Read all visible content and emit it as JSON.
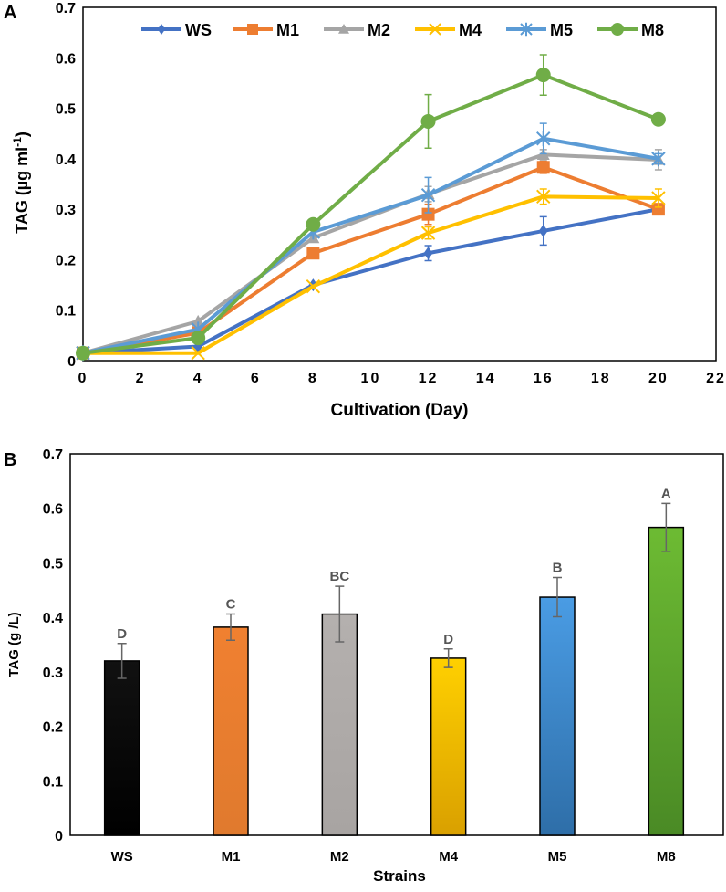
{
  "chart_data": [
    {
      "type": "line",
      "panel_label": "A",
      "title": "",
      "xlabel": "Cultivation (Day)",
      "ylabel": "TAG (µg ml",
      "ylabel_sup": "-1",
      "ylabel_close": ")",
      "xlim": [
        0,
        22
      ],
      "ylim": [
        0,
        0.7
      ],
      "x_ticks": [
        "0",
        "2",
        "4",
        "6",
        "8",
        "10",
        "12",
        "14",
        "16",
        "18",
        "20",
        "22"
      ],
      "y_ticks": [
        "0",
        "0.1",
        "0.2",
        "0.3",
        "0.4",
        "0.5",
        "0.6",
        "0.7"
      ],
      "legend_position": "top",
      "grid": false,
      "x": [
        0,
        4,
        8,
        12,
        16,
        20
      ],
      "series": [
        {
          "name": "WS",
          "color": "#4472C4",
          "marker": "diamond",
          "values": [
            0.015,
            0.028,
            0.15,
            0.213,
            0.257,
            0.3
          ],
          "errors": [
            0.004,
            0.004,
            0.006,
            0.015,
            0.028,
            0.008
          ]
        },
        {
          "name": "M1",
          "color": "#ED7D31",
          "marker": "square",
          "values": [
            0.015,
            0.055,
            0.213,
            0.29,
            0.383,
            0.3
          ],
          "errors": [
            0.004,
            0.005,
            0.008,
            0.02,
            0.012,
            0.008
          ]
        },
        {
          "name": "M2",
          "color": "#A5A5A5",
          "marker": "triangle",
          "values": [
            0.015,
            0.078,
            0.243,
            0.33,
            0.408,
            0.398
          ],
          "errors": [
            0.004,
            0.005,
            0.008,
            0.015,
            0.01,
            0.02
          ]
        },
        {
          "name": "M4",
          "color": "#FFC000",
          "marker": "x",
          "values": [
            0.015,
            0.015,
            0.147,
            0.253,
            0.325,
            0.322
          ],
          "errors": [
            0.004,
            0.004,
            0.006,
            0.012,
            0.015,
            0.018
          ]
        },
        {
          "name": "M5",
          "color": "#5B9BD5",
          "marker": "star",
          "values": [
            0.015,
            0.062,
            0.255,
            0.328,
            0.44,
            0.4
          ],
          "errors": [
            0.004,
            0.005,
            0.008,
            0.035,
            0.03,
            0.01
          ]
        },
        {
          "name": "M8",
          "color": "#70AD47",
          "marker": "circle",
          "values": [
            0.015,
            0.045,
            0.27,
            0.474,
            0.566,
            0.478
          ],
          "errors": [
            0.004,
            0.005,
            0.01,
            0.053,
            0.04,
            0.006
          ]
        }
      ]
    },
    {
      "type": "bar",
      "panel_label": "B",
      "title": "",
      "xlabel": "Strains",
      "ylabel": "TAG (g /L)",
      "ylim": [
        0,
        0.7
      ],
      "y_ticks": [
        "0",
        "0.1",
        "0.2",
        "0.3",
        "0.4",
        "0.5",
        "0.6",
        "0.7"
      ],
      "grid": false,
      "categories": [
        "WS",
        "M1",
        "M2",
        "M4",
        "M5",
        "M8"
      ],
      "values": [
        0.32,
        0.382,
        0.406,
        0.325,
        0.437,
        0.565
      ],
      "errors": [
        0.032,
        0.024,
        0.051,
        0.017,
        0.036,
        0.044
      ],
      "significance_letters": [
        "D",
        "C",
        "BC",
        "D",
        "B",
        "A"
      ],
      "colors": [
        [
          "#111111",
          "#000000"
        ],
        [
          "#F08030",
          "#E07A2E"
        ],
        [
          "#B4B0AE",
          "#A8A4A2"
        ],
        [
          "#FFD000",
          "#D9A000"
        ],
        [
          "#4A9CE4",
          "#2E6EA8"
        ],
        [
          "#6DBB33",
          "#4A8A25"
        ]
      ]
    }
  ]
}
